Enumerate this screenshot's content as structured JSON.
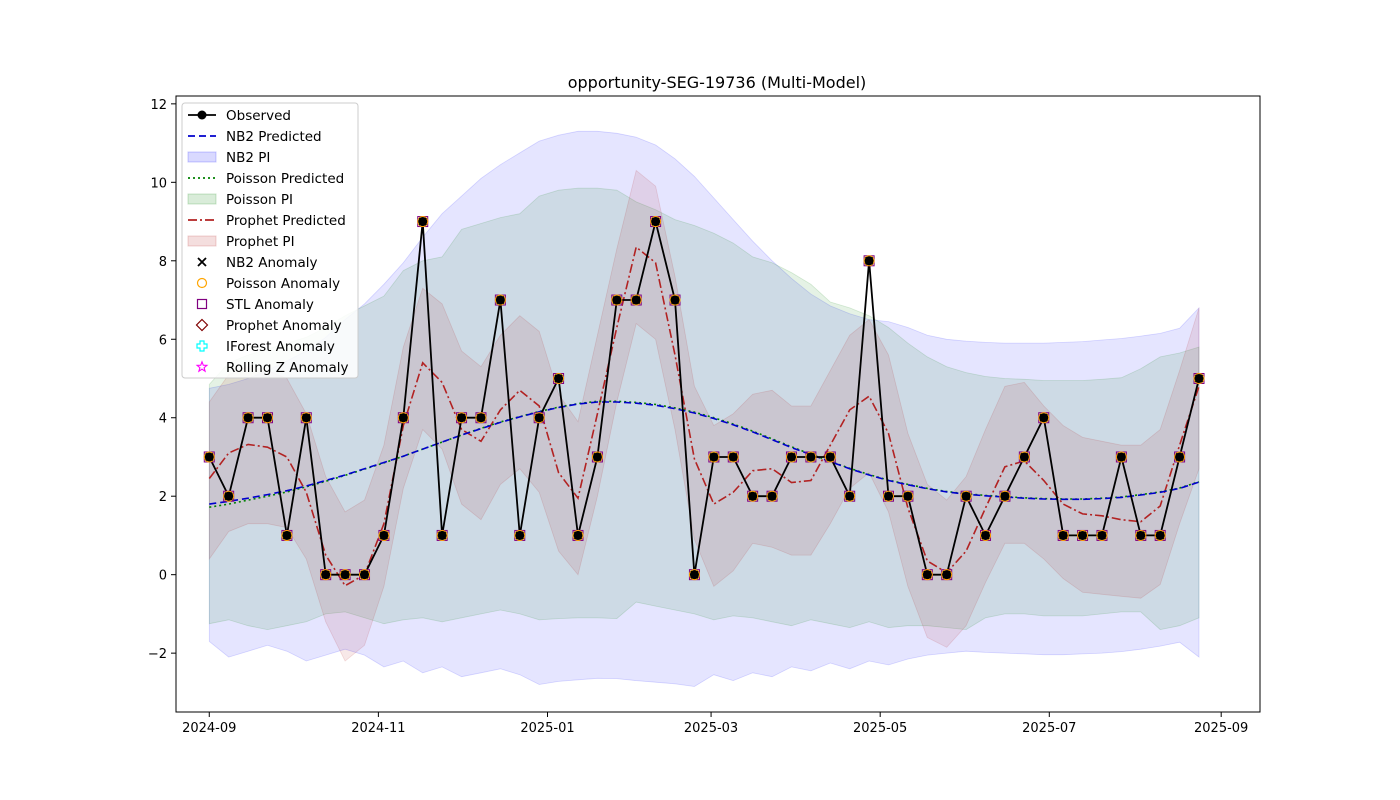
{
  "chart_data": {
    "type": "line",
    "title": "opportunity-SEG-19736 (Multi-Model)",
    "xlabel": "",
    "ylabel": "",
    "x_axis": "date",
    "xlim": [
      "2024-08-20",
      "2025-09-15"
    ],
    "ylim": [
      -3.5,
      12.2
    ],
    "x_ticks": [
      "2024-09-01",
      "2024-11-01",
      "2025-01-01",
      "2025-03-01",
      "2025-05-01",
      "2025-07-01",
      "2025-09-01"
    ],
    "x_tick_labels": [
      "2024-09",
      "2024-11",
      "2025-01",
      "2025-03",
      "2025-05",
      "2025-07",
      "2025-09"
    ],
    "y_ticks": [
      -2,
      0,
      2,
      4,
      6,
      8,
      10,
      12
    ],
    "y_tick_labels": [
      "−2",
      "0",
      "2",
      "4",
      "6",
      "8",
      "10",
      "12"
    ],
    "grid": false,
    "legend_position": "top-left",
    "dates": [
      "2024-09-01",
      "2024-09-08",
      "2024-09-15",
      "2024-09-22",
      "2024-09-29",
      "2024-10-06",
      "2024-10-13",
      "2024-10-20",
      "2024-10-27",
      "2024-11-03",
      "2024-11-10",
      "2024-11-17",
      "2024-11-24",
      "2024-12-01",
      "2024-12-08",
      "2024-12-15",
      "2024-12-22",
      "2024-12-29",
      "2025-01-05",
      "2025-01-12",
      "2025-01-19",
      "2025-01-26",
      "2025-02-02",
      "2025-02-09",
      "2025-02-16",
      "2025-02-23",
      "2025-03-02",
      "2025-03-09",
      "2025-03-16",
      "2025-03-23",
      "2025-03-30",
      "2025-04-06",
      "2025-04-13",
      "2025-04-20",
      "2025-04-27",
      "2025-05-04",
      "2025-05-11",
      "2025-05-18",
      "2025-05-25",
      "2025-06-01",
      "2025-06-08",
      "2025-06-15",
      "2025-06-22",
      "2025-06-29",
      "2025-07-06",
      "2025-07-13",
      "2025-07-20",
      "2025-07-27",
      "2025-08-03",
      "2025-08-10",
      "2025-08-17",
      "2025-08-24"
    ],
    "series": [
      {
        "name": "Observed",
        "kind": "line-marker",
        "color": "#000000",
        "values": [
          3,
          2,
          4,
          4,
          1,
          4,
          0,
          0,
          0,
          1,
          4,
          9,
          1,
          4,
          4,
          7,
          1,
          4,
          5,
          1,
          3,
          7,
          7,
          9,
          7,
          0,
          3,
          3,
          2,
          2,
          3,
          3,
          3,
          2,
          8,
          2,
          2,
          0,
          0,
          2,
          1,
          2,
          3,
          4,
          1,
          1,
          1,
          3,
          1,
          1,
          3,
          5
        ]
      },
      {
        "name": "NB2 Predicted",
        "kind": "dashed",
        "color": "#0000cc",
        "values": [
          1.8,
          1.87,
          1.95,
          2.04,
          2.14,
          2.26,
          2.4,
          2.54,
          2.7,
          2.86,
          3.02,
          3.2,
          3.38,
          3.56,
          3.72,
          3.88,
          4.02,
          4.15,
          4.26,
          4.35,
          4.4,
          4.4,
          4.37,
          4.32,
          4.23,
          4.12,
          3.98,
          3.82,
          3.64,
          3.44,
          3.24,
          3.06,
          2.88,
          2.7,
          2.54,
          2.4,
          2.29,
          2.19,
          2.11,
          2.05,
          2.01,
          1.98,
          1.95,
          1.93,
          1.92,
          1.92,
          1.94,
          1.97,
          2.03,
          2.1,
          2.2,
          2.36
        ]
      },
      {
        "name": "Poisson Predicted",
        "kind": "dotted",
        "color": "#008000",
        "values": [
          1.72,
          1.8,
          1.9,
          2.0,
          2.11,
          2.24,
          2.38,
          2.53,
          2.69,
          2.85,
          3.02,
          3.2,
          3.38,
          3.56,
          3.73,
          3.89,
          4.03,
          4.16,
          4.27,
          4.36,
          4.42,
          4.42,
          4.39,
          4.34,
          4.25,
          4.14,
          4.0,
          3.84,
          3.66,
          3.46,
          3.26,
          3.07,
          2.89,
          2.71,
          2.55,
          2.41,
          2.3,
          2.2,
          2.12,
          2.06,
          2.02,
          1.99,
          1.96,
          1.94,
          1.93,
          1.93,
          1.95,
          1.98,
          2.04,
          2.11,
          2.21,
          2.37
        ]
      },
      {
        "name": "Prophet Predicted",
        "kind": "dashdot",
        "color": "#b22222",
        "values": [
          2.45,
          3.1,
          3.32,
          3.25,
          3.0,
          2.1,
          0.5,
          -0.28,
          0.0,
          1.3,
          3.8,
          5.4,
          4.9,
          3.7,
          3.4,
          4.2,
          4.7,
          4.3,
          2.6,
          1.95,
          4.1,
          6.3,
          8.35,
          7.95,
          5.6,
          2.95,
          1.8,
          2.1,
          2.65,
          2.7,
          2.35,
          2.4,
          3.3,
          4.2,
          4.55,
          3.6,
          1.7,
          0.35,
          0.05,
          0.6,
          1.7,
          2.75,
          2.9,
          2.4,
          1.8,
          1.55,
          1.5,
          1.4,
          1.35,
          1.75,
          3.3,
          4.8
        ]
      }
    ],
    "bands": [
      {
        "name": "NB2 PI",
        "color": "#0000ff",
        "opacity": 0.1,
        "lower": [
          -1.7,
          -2.1,
          -1.95,
          -1.8,
          -1.95,
          -2.2,
          -2.05,
          -1.9,
          -2.05,
          -2.35,
          -2.2,
          -2.5,
          -2.35,
          -2.6,
          -2.5,
          -2.4,
          -2.55,
          -2.8,
          -2.72,
          -2.68,
          -2.64,
          -2.65,
          -2.7,
          -2.74,
          -2.78,
          -2.85,
          -2.55,
          -2.7,
          -2.5,
          -2.6,
          -2.35,
          -2.45,
          -2.25,
          -2.4,
          -2.2,
          -2.3,
          -2.15,
          -2.05,
          -2.0,
          -1.95,
          -1.98,
          -2.0,
          -2.02,
          -2.04,
          -2.04,
          -2.02,
          -2.0,
          -1.96,
          -1.9,
          -1.82,
          -1.72,
          -2.1
        ],
        "upper": [
          4.75,
          4.85,
          5.0,
          5.2,
          5.45,
          5.7,
          6.05,
          6.5,
          6.9,
          7.4,
          7.95,
          8.6,
          9.2,
          9.65,
          10.1,
          10.45,
          10.75,
          11.05,
          11.2,
          11.3,
          11.3,
          11.25,
          11.15,
          10.95,
          10.6,
          10.15,
          9.6,
          9.05,
          8.5,
          8.0,
          7.55,
          7.15,
          6.85,
          6.65,
          6.5,
          6.45,
          6.3,
          6.1,
          6.0,
          5.95,
          5.92,
          5.9,
          5.9,
          5.9,
          5.92,
          5.94,
          5.98,
          6.02,
          6.08,
          6.15,
          6.28,
          6.8
        ]
      },
      {
        "name": "Poisson PI",
        "color": "#008000",
        "opacity": 0.1,
        "lower": [
          -1.25,
          -1.15,
          -1.3,
          -1.4,
          -1.3,
          -1.2,
          -1.0,
          -0.95,
          -1.1,
          -1.25,
          -1.15,
          -1.1,
          -1.2,
          -1.1,
          -1.0,
          -0.9,
          -1.0,
          -1.15,
          -1.12,
          -1.1,
          -1.1,
          -1.12,
          -0.7,
          -0.8,
          -0.9,
          -1.0,
          -1.15,
          -1.05,
          -1.1,
          -1.2,
          -1.3,
          -1.15,
          -1.25,
          -1.35,
          -1.2,
          -1.35,
          -1.3,
          -1.3,
          -1.35,
          -1.4,
          -1.1,
          -1.0,
          -1.0,
          -1.05,
          -1.05,
          -1.05,
          -1.0,
          -0.95,
          -0.95,
          -1.4,
          -1.3,
          -1.1
        ],
        "upper": [
          4.85,
          5.4,
          5.6,
          5.75,
          5.9,
          6.05,
          6.3,
          6.6,
          6.85,
          7.1,
          7.75,
          8.0,
          8.1,
          8.8,
          8.95,
          9.1,
          9.2,
          9.65,
          9.8,
          9.85,
          9.85,
          9.8,
          9.5,
          9.3,
          9.05,
          8.9,
          8.7,
          8.45,
          8.1,
          7.95,
          7.7,
          7.4,
          6.95,
          6.8,
          6.6,
          6.3,
          5.9,
          5.55,
          5.3,
          5.15,
          5.05,
          5.0,
          4.98,
          4.95,
          4.95,
          4.95,
          4.98,
          5.02,
          5.25,
          5.55,
          5.65,
          5.8
        ]
      },
      {
        "name": "Prophet PI",
        "color": "#b22222",
        "opacity": 0.1,
        "lower": [
          0.4,
          1.1,
          1.3,
          1.3,
          1.2,
          0.4,
          -1.2,
          -2.2,
          -1.8,
          -0.3,
          2.2,
          3.7,
          3.2,
          1.8,
          1.4,
          2.3,
          2.7,
          2.1,
          0.6,
          0.0,
          2.0,
          4.4,
          6.4,
          6.0,
          3.7,
          0.9,
          -0.3,
          0.1,
          0.8,
          0.7,
          0.5,
          0.5,
          1.3,
          2.2,
          2.6,
          1.6,
          -0.3,
          -1.6,
          -1.85,
          -1.3,
          -0.2,
          0.8,
          0.8,
          0.4,
          -0.1,
          -0.45,
          -0.5,
          -0.55,
          -0.6,
          -0.25,
          1.3,
          2.7
        ],
        "upper": [
          4.4,
          5.1,
          5.3,
          5.2,
          5.0,
          4.1,
          2.5,
          1.6,
          1.9,
          3.3,
          5.8,
          7.3,
          6.9,
          5.7,
          5.3,
          6.1,
          6.6,
          6.2,
          4.6,
          3.9,
          6.1,
          8.3,
          10.3,
          9.9,
          7.6,
          4.8,
          3.8,
          4.1,
          4.6,
          4.7,
          4.3,
          4.3,
          5.2,
          6.1,
          6.5,
          5.6,
          3.6,
          2.3,
          1.9,
          2.5,
          3.7,
          4.8,
          4.9,
          4.3,
          3.8,
          3.5,
          3.4,
          3.3,
          3.3,
          3.7,
          5.2,
          6.8
        ]
      }
    ],
    "anomaly_markers": [
      {
        "name": "NB2 Anomaly",
        "marker": "x",
        "color": "#000000"
      },
      {
        "name": "Poisson Anomaly",
        "marker": "o",
        "color": "#ffa500"
      },
      {
        "name": "STL Anomaly",
        "marker": "s",
        "color": "#800080"
      },
      {
        "name": "Prophet Anomaly",
        "marker": "D",
        "color": "#800000"
      },
      {
        "name": "IForest Anomaly",
        "marker": "P",
        "color": "#00ffff"
      },
      {
        "name": "Rolling Z Anomaly",
        "marker": "*",
        "color": "#ff00ff"
      }
    ],
    "legend": [
      "Observed",
      "NB2 Predicted",
      "NB2 PI",
      "Poisson Predicted",
      "Poisson PI",
      "Prophet Predicted",
      "Prophet PI",
      "NB2 Anomaly",
      "Poisson Anomaly",
      "STL Anomaly",
      "Prophet Anomaly",
      "IForest Anomaly",
      "Rolling Z Anomaly"
    ]
  }
}
